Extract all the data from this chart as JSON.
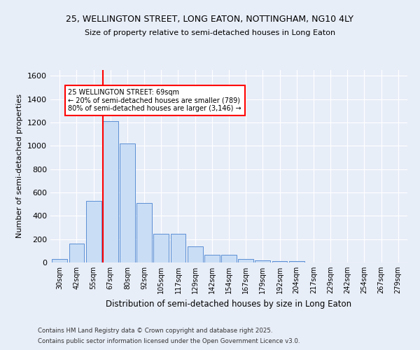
{
  "title1": "25, WELLINGTON STREET, LONG EATON, NOTTINGHAM, NG10 4LY",
  "title2": "Size of property relative to semi-detached houses in Long Eaton",
  "xlabel": "Distribution of semi-detached houses by size in Long Eaton",
  "ylabel": "Number of semi-detached properties",
  "bar_labels": [
    "30sqm",
    "42sqm",
    "55sqm",
    "67sqm",
    "80sqm",
    "92sqm",
    "105sqm",
    "117sqm",
    "129sqm",
    "142sqm",
    "154sqm",
    "167sqm",
    "179sqm",
    "192sqm",
    "204sqm",
    "217sqm",
    "229sqm",
    "242sqm",
    "254sqm",
    "267sqm",
    "279sqm"
  ],
  "bar_values": [
    30,
    165,
    530,
    1210,
    1020,
    510,
    245,
    245,
    140,
    65,
    65,
    30,
    20,
    10,
    10,
    0,
    0,
    0,
    0,
    0,
    0
  ],
  "bar_color": "#c9ddf5",
  "bar_edge_color": "#5b8fd4",
  "vline_color": "red",
  "annotation_title": "25 WELLINGTON STREET: 69sqm",
  "annotation_line1": "← 20% of semi-detached houses are smaller (789)",
  "annotation_line2": "80% of semi-detached houses are larger (3,146) →",
  "ylim": [
    0,
    1650
  ],
  "yticks": [
    0,
    200,
    400,
    600,
    800,
    1000,
    1200,
    1400,
    1600
  ],
  "footnote1": "Contains HM Land Registry data © Crown copyright and database right 2025.",
  "footnote2": "Contains public sector information licensed under the Open Government Licence v3.0.",
  "bg_color": "#e8eef8",
  "plot_bg_color": "#e8eef8"
}
